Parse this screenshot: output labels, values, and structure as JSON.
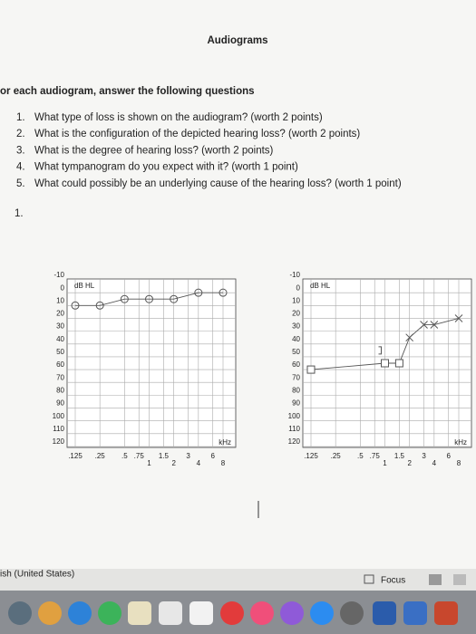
{
  "header": {
    "title": "Audiograms"
  },
  "instructions": "or each audiogram, answer the following questions",
  "questions": [
    {
      "number": "1.",
      "text": "What type of loss is shown on the audiogram? (worth 2 points)"
    },
    {
      "number": "2.",
      "text": "What is the configuration of the depicted hearing loss? (worth 2 points)"
    },
    {
      "number": "3.",
      "text": "What is the degree of hearing loss? (worth 2 points)"
    },
    {
      "number": "4.",
      "text": "What tympanogram do you expect with it? (worth 1 point)"
    },
    {
      "number": "5.",
      "text": "What could possibly be an underlying cause of the hearing loss? (worth 1 point)"
    }
  ],
  "section": "1.",
  "chart_data": [
    {
      "type": "line",
      "y_label": "dB HL",
      "x_label": "kHz",
      "xscale": "log",
      "y_inverted": true,
      "grid": true,
      "xlim": [
        0.125,
        8
      ],
      "ylim": [
        -10,
        120
      ],
      "yticks": [
        -10,
        0,
        10,
        20,
        30,
        40,
        50,
        60,
        70,
        80,
        90,
        100,
        110,
        120
      ],
      "xticks": [
        {
          "value": 0.125,
          "label": ".125"
        },
        {
          "value": 0.25,
          "label": ".25"
        },
        {
          "value": 0.5,
          "label": ".5"
        },
        {
          "value": 0.75,
          "label": ".75"
        },
        1,
        {
          "value": 1.5,
          "label": "1.5"
        },
        2,
        3,
        4,
        6,
        8
      ],
      "series": [
        {
          "marker": "circle",
          "color": "#555555",
          "x": [
            0.125,
            0.25,
            0.5,
            1,
            2,
            4,
            8
          ],
          "values": [
            10,
            10,
            5,
            5,
            5,
            0,
            0
          ]
        }
      ]
    },
    {
      "type": "line",
      "y_label": "dB HL",
      "x_label": "kHz",
      "xscale": "log",
      "y_inverted": true,
      "grid": true,
      "xlim": [
        0.125,
        8
      ],
      "ylim": [
        -10,
        120
      ],
      "yticks": [
        -10,
        0,
        10,
        20,
        30,
        40,
        50,
        60,
        70,
        80,
        90,
        100,
        110,
        120
      ],
      "xticks": [
        {
          "value": 0.125,
          "label": ".125"
        },
        {
          "value": 0.25,
          "label": ".25"
        },
        {
          "value": 0.5,
          "label": ".5"
        },
        {
          "value": 0.75,
          "label": ".75"
        },
        1,
        {
          "value": 1.5,
          "label": "1.5"
        },
        2,
        3,
        4,
        6,
        8
      ],
      "series": [
        {
          "marker": "square",
          "color": "#555555",
          "x": [
            0.125,
            1,
            1.5,
            2,
            3,
            4,
            8
          ],
          "values": [
            60,
            55,
            55,
            35,
            25,
            25,
            20
          ],
          "markers": [
            "square",
            "square",
            "square",
            "x",
            "x",
            "x",
            "x"
          ]
        },
        {
          "marker": "bracket",
          "color": "#555555",
          "x": [
            1
          ],
          "values": [
            45
          ]
        }
      ]
    }
  ],
  "footer": {
    "language": "ish (United States)",
    "focus": "Focus"
  }
}
